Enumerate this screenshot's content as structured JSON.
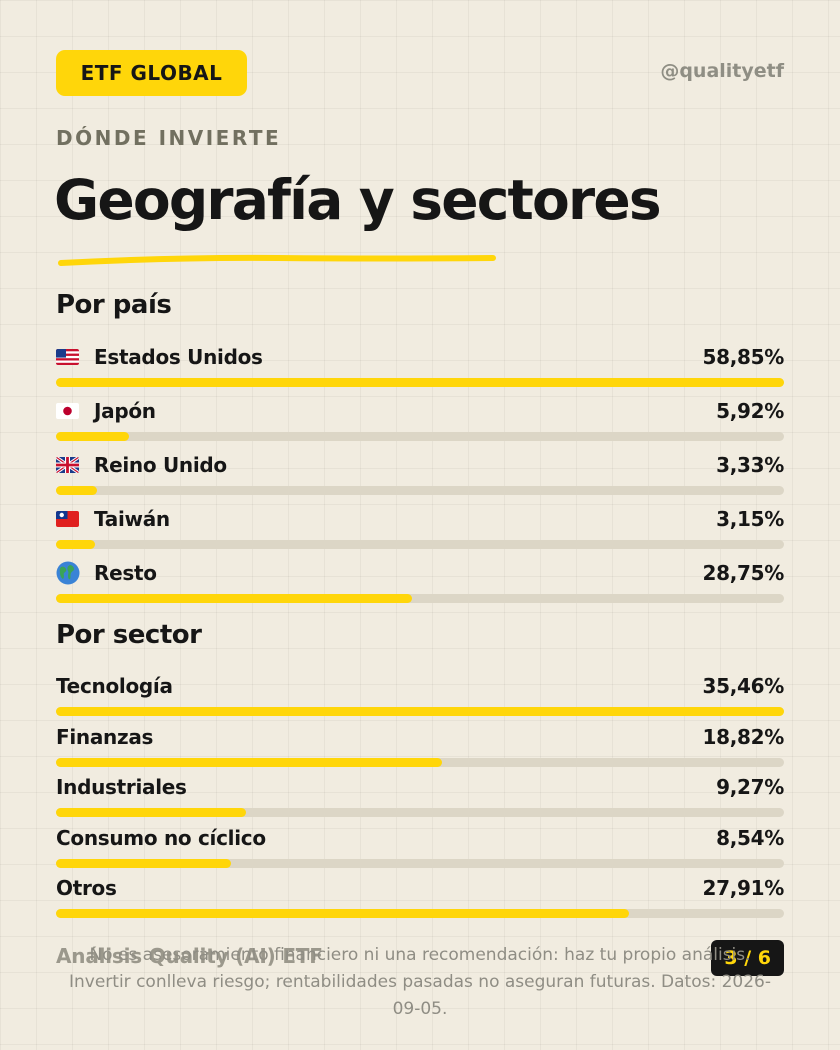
{
  "header": {
    "badge": "ETF GLOBAL",
    "handle": "@qualityetf",
    "eyebrow": "DÓNDE INVIERTE",
    "title": "Geografía y sectores"
  },
  "colors": {
    "accent": "#ffd60a",
    "track": "#dcd6c6",
    "text": "#161616",
    "background": "#f1ece0"
  },
  "chart_data": [
    {
      "type": "bar",
      "orientation": "horizontal",
      "title": "Por país",
      "categories": [
        "Estados Unidos",
        "Japón",
        "Reino Unido",
        "Taiwán",
        "Resto"
      ],
      "values": [
        58.85,
        5.92,
        3.33,
        3.15,
        28.75
      ],
      "labels": [
        "58,85%",
        "5,92%",
        "3,33%",
        "3,15%",
        "28,75%"
      ],
      "icons": [
        "flag-us-icon",
        "flag-jp-icon",
        "flag-gb-icon",
        "flag-tw-icon",
        "globe-icon"
      ],
      "xlim": [
        0,
        58.85
      ]
    },
    {
      "type": "bar",
      "orientation": "horizontal",
      "title": "Por sector",
      "categories": [
        "Tecnología",
        "Finanzas",
        "Industriales",
        "Consumo no cíclico",
        "Otros"
      ],
      "values": [
        35.46,
        18.82,
        9.27,
        8.54,
        27.91
      ],
      "labels": [
        "35,46%",
        "18,82%",
        "9,27%",
        "8,54%",
        "27,91%"
      ],
      "xlim": [
        0,
        35.46
      ]
    }
  ],
  "footer": {
    "name": "Análisis Quality (AI) ETF",
    "page": "3 / 6",
    "disclaimer": "No es asesoramiento financiero ni una recomendación: haz tu propio análisis. Invertir conlleva riesgo; rentabilidades pasadas no aseguran futuras. Datos: 2026-09-05."
  }
}
